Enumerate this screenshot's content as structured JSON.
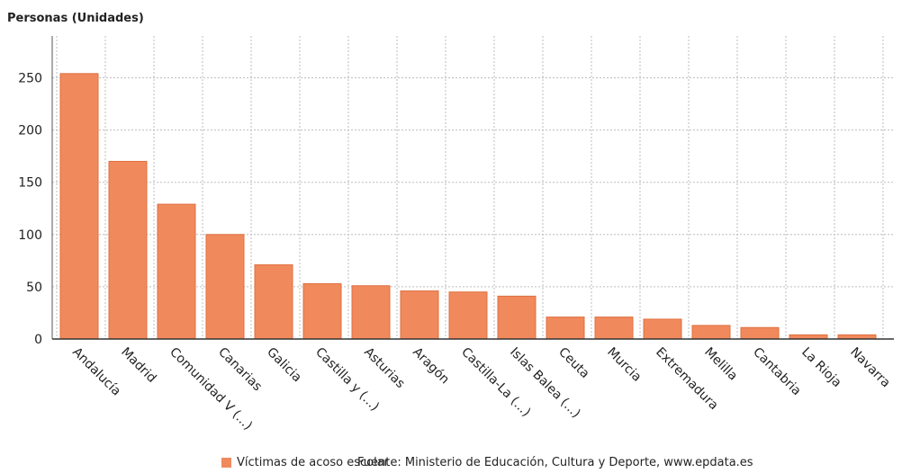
{
  "chart_data": {
    "type": "bar",
    "ylabel": "Personas (Unidades)",
    "ylim": [
      0,
      290
    ],
    "yticks": [
      0,
      50,
      100,
      150,
      200,
      250
    ],
    "grid": true,
    "legend_position": "bottom",
    "categories": [
      "Andalucía",
      "Madrid",
      "Comunidad V (...)",
      "Canarias",
      "Galicia",
      "Castilla y (...)",
      "Asturias",
      "Aragón",
      "Castilla-La (...)",
      "Islas Balea (...)",
      "Ceuta",
      "Murcia",
      "Extremadura",
      "Melilla",
      "Cantabria",
      "La Rioja",
      "Navarra"
    ],
    "series": [
      {
        "name": "Víctimas de acoso escolar",
        "color": "#F08A5D",
        "values": [
          254,
          170,
          129,
          100,
          71,
          53,
          51,
          46,
          45,
          41,
          21,
          21,
          19,
          13,
          11,
          4,
          4
        ]
      }
    ],
    "source": "Fuente: Ministerio de Educación, Cultura y Deporte, www.epdata.es"
  }
}
